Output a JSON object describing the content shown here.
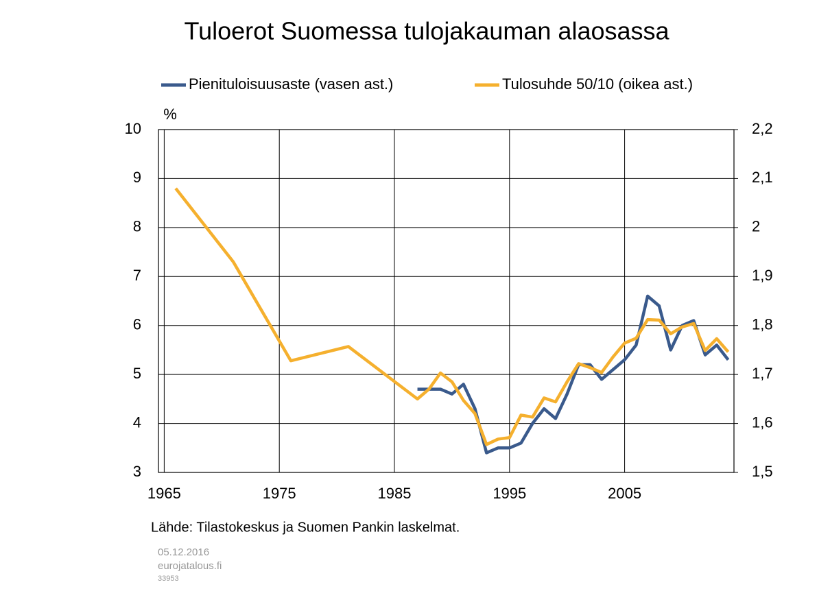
{
  "chart_data": {
    "type": "line",
    "title": "Tuloerot Suomessa tulojakauman alaosassa",
    "y_unit": "%",
    "source": "Lähde: Tilastokeskus ja Suomen Pankin laskelmat.",
    "footer": [
      "05.12.2016",
      "eurojatalous.fi",
      "33953"
    ],
    "xlim": [
      1964.5,
      2014.5
    ],
    "xticks": [
      1965,
      1975,
      1985,
      1995,
      2005
    ],
    "ylim": [
      3,
      10
    ],
    "yticks": [
      3,
      4,
      5,
      6,
      7,
      8,
      9,
      10
    ],
    "y2lim": [
      1.5,
      2.2
    ],
    "y2ticks": [
      {
        "value": 1.5,
        "label": "1,5"
      },
      {
        "value": 1.6,
        "label": "1,6"
      },
      {
        "value": 1.7,
        "label": "1,7"
      },
      {
        "value": 1.8,
        "label": "1,8"
      },
      {
        "value": 1.9,
        "label": "1,9"
      },
      {
        "value": 2,
        "label": "2"
      },
      {
        "value": 2.1,
        "label": "2,1"
      },
      {
        "value": 2.2,
        "label": "2,2"
      }
    ],
    "grid": true,
    "series": [
      {
        "name": "Pienituloisuusaste (vasen ast.)",
        "color": "#3a5a8c",
        "axis": "y",
        "x": [
          1987,
          1988,
          1989,
          1990,
          1991,
          1992,
          1993,
          1994,
          1995,
          1996,
          1997,
          1998,
          1999,
          2000,
          2001,
          2002,
          2003,
          2004,
          2005,
          2006,
          2007,
          2008,
          2009,
          2010,
          2011,
          2012,
          2013,
          2014
        ],
        "values": [
          4.7,
          4.7,
          4.7,
          4.6,
          4.8,
          4.3,
          3.4,
          3.5,
          3.5,
          3.6,
          4.0,
          4.3,
          4.1,
          4.6,
          5.2,
          5.2,
          4.9,
          5.1,
          5.3,
          5.6,
          6.6,
          6.4,
          5.5,
          6.0,
          6.1,
          5.4,
          5.6,
          5.3
        ]
      },
      {
        "name": "Tulosuhde 50/10 (oikea ast.)",
        "color": "#f5b02e",
        "axis": "y2",
        "x": [
          1966,
          1971,
          1976,
          1981,
          1987,
          1988,
          1989,
          1990,
          1991,
          1992,
          1993,
          1994,
          1995,
          1996,
          1997,
          1998,
          1999,
          2000,
          2001,
          2002,
          2003,
          2004,
          2005,
          2006,
          2007,
          2008,
          2009,
          2010,
          2011,
          2012,
          2013,
          2014
        ],
        "values": [
          2.08,
          1.93,
          1.728,
          1.757,
          1.65,
          1.67,
          1.703,
          1.685,
          1.647,
          1.62,
          1.557,
          1.568,
          1.571,
          1.617,
          1.613,
          1.652,
          1.644,
          1.685,
          1.722,
          1.714,
          1.704,
          1.736,
          1.764,
          1.774,
          1.812,
          1.811,
          1.783,
          1.797,
          1.804,
          1.749,
          1.773,
          1.746
        ]
      }
    ]
  }
}
